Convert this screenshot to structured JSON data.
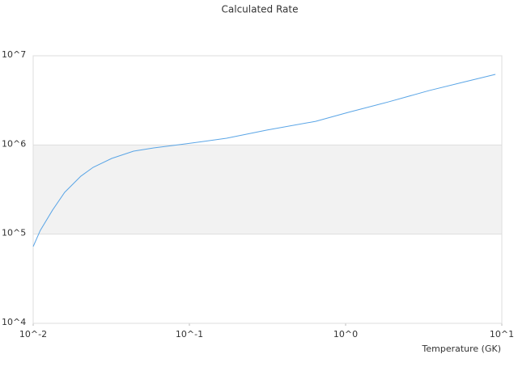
{
  "chart_data": {
    "type": "line",
    "title": "Calculated Rate",
    "x_label": "Temperature (GK)",
    "xscale": "log",
    "yscale": "log",
    "xlim": [
      0.01,
      10
    ],
    "ylim": [
      10000,
      10000000
    ],
    "xticks": [
      {
        "value": 0.01,
        "label": "10^-2"
      },
      {
        "value": 0.1,
        "label": "10^-1"
      },
      {
        "value": 1,
        "label": "10^0"
      },
      {
        "value": 10,
        "label": "10^1"
      }
    ],
    "yticks": [
      {
        "value": 10000,
        "label": "10^4"
      },
      {
        "value": 100000,
        "label": "10^5"
      },
      {
        "value": 1000000,
        "label": "10^6"
      },
      {
        "value": 10000000,
        "label": "10^7"
      }
    ],
    "grid": true,
    "band_color": "#f2f2f2",
    "series": [
      {
        "color": "#5aa5e6",
        "x": [
          0.01,
          0.0111,
          0.0133,
          0.0159,
          0.0202,
          0.0242,
          0.0318,
          0.0439,
          0.0591,
          0.0953,
          0.173,
          0.314,
          0.643,
          1.04,
          1.88,
          3.42,
          5.85,
          9.1
        ],
        "values": [
          72600,
          110000,
          186000,
          294000,
          447000,
          561000,
          706000,
          852000,
          927000,
          1030000,
          1190000,
          1470000,
          1840000,
          2320000,
          3040000,
          4070000,
          5130000,
          6190000
        ]
      }
    ]
  }
}
